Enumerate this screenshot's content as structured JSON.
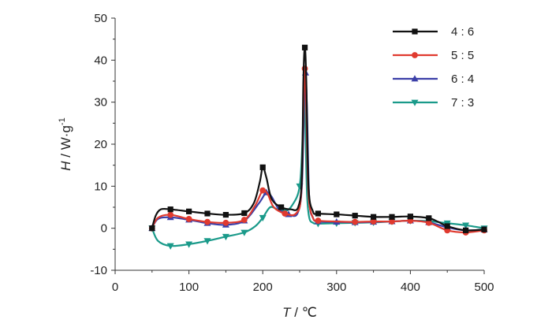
{
  "chart_data": {
    "type": "line",
    "xlabel": {
      "symbol": "T",
      "unit": " / ℃"
    },
    "ylabel": {
      "symbol": "H",
      "unit": " / W·g",
      "exp": "-1"
    },
    "xlim": [
      0,
      500
    ],
    "ylim": [
      -10,
      50
    ],
    "xticks": [
      "0",
      "100",
      "200",
      "300",
      "400",
      "500"
    ],
    "yticks": [
      "-10",
      "0",
      "10",
      "20",
      "30",
      "40",
      "50"
    ],
    "xtick_values": [
      0,
      100,
      200,
      300,
      400,
      500
    ],
    "ytick_values": [
      -10,
      0,
      10,
      20,
      30,
      40,
      50
    ],
    "grid": false,
    "legend_position": "top-right",
    "series": [
      {
        "name": "4 : 6",
        "color": "#111111",
        "marker": "square",
        "x": [
          50,
          55,
          62,
          75,
          100,
          125,
          150,
          175,
          188,
          196,
          200,
          205,
          212,
          225,
          238,
          248,
          253,
          255,
          257,
          259,
          262,
          268,
          275,
          300,
          325,
          350,
          375,
          400,
          425,
          438,
          450,
          475,
          500
        ],
        "y": [
          0,
          3,
          4.5,
          4.5,
          4,
          3.5,
          3.2,
          3.6,
          6,
          11,
          14.5,
          12,
          7,
          5,
          4.5,
          5,
          12,
          35,
          43,
          35,
          10,
          4,
          3.5,
          3.3,
          3,
          2.7,
          2.7,
          2.8,
          2.4,
          1.5,
          0.5,
          -0.5,
          -0.3
        ],
        "marker_idx": [
          0,
          3,
          4,
          5,
          6,
          7,
          10,
          13,
          18,
          22,
          23,
          24,
          25,
          26,
          27,
          28,
          30,
          31,
          32
        ]
      },
      {
        "name": "5 : 5",
        "color": "#e03a2f",
        "marker": "circle",
        "x": [
          50,
          58,
          75,
          100,
          125,
          150,
          175,
          190,
          200,
          207,
          215,
          230,
          245,
          252,
          255,
          257,
          259,
          262,
          268,
          275,
          300,
          325,
          350,
          375,
          400,
          425,
          450,
          475,
          500
        ],
        "y": [
          0,
          2.5,
          3.2,
          2.2,
          1.5,
          1.3,
          2,
          5.5,
          9,
          8,
          5,
          3.5,
          3.5,
          8,
          28,
          38,
          28,
          8,
          2.5,
          1.8,
          1.6,
          1.5,
          1.6,
          1.6,
          1.8,
          1.3,
          -0.5,
          -1,
          -0.5
        ],
        "marker_idx": [
          0,
          2,
          3,
          4,
          5,
          6,
          8,
          11,
          15,
          19,
          21,
          22,
          23,
          24,
          25,
          26,
          27,
          28
        ]
      },
      {
        "name": "6 : 4",
        "color": "#3b3fa8",
        "marker": "triangle-up",
        "x": [
          50,
          58,
          75,
          100,
          125,
          150,
          175,
          195,
          205,
          212,
          222,
          235,
          247,
          253,
          256,
          258,
          260,
          263,
          268,
          275,
          300,
          325,
          350,
          375,
          400,
          425,
          450,
          475,
          500
        ],
        "y": [
          0,
          2.2,
          2.6,
          2,
          1.2,
          0.8,
          1.8,
          6,
          8.5,
          7.5,
          4.5,
          3.3,
          3.5,
          10,
          30,
          37,
          28,
          7,
          2.5,
          1.6,
          1.5,
          1.4,
          1.5,
          1.6,
          1.8,
          1.4,
          0.2,
          -0.5,
          -0.3
        ],
        "marker_idx": [
          0,
          2,
          3,
          4,
          5,
          6,
          8,
          11,
          15,
          19,
          20,
          21,
          22,
          23,
          24,
          25,
          26,
          27,
          28
        ]
      },
      {
        "name": "7 : 3",
        "color": "#1a9a8a",
        "marker": "triangle-down",
        "x": [
          50,
          58,
          75,
          100,
          125,
          150,
          175,
          190,
          200,
          210,
          220,
          230,
          240,
          250,
          254,
          256,
          258,
          260,
          263,
          268,
          275,
          300,
          325,
          350,
          375,
          400,
          425,
          450,
          475,
          500
        ],
        "y": [
          0,
          -3,
          -4.2,
          -3.8,
          -3,
          -2,
          -1,
          0.5,
          2.5,
          5,
          4.5,
          4,
          5.5,
          10,
          22,
          36,
          22,
          8,
          2.5,
          1.3,
          1.1,
          1.2,
          1.3,
          1.4,
          1.6,
          1.8,
          1.7,
          1.2,
          0.7,
          0
        ],
        "marker_idx": [
          0,
          2,
          3,
          4,
          5,
          6,
          8,
          11,
          13,
          20,
          21,
          22,
          23,
          24,
          25,
          26,
          27,
          28,
          29
        ]
      }
    ]
  }
}
